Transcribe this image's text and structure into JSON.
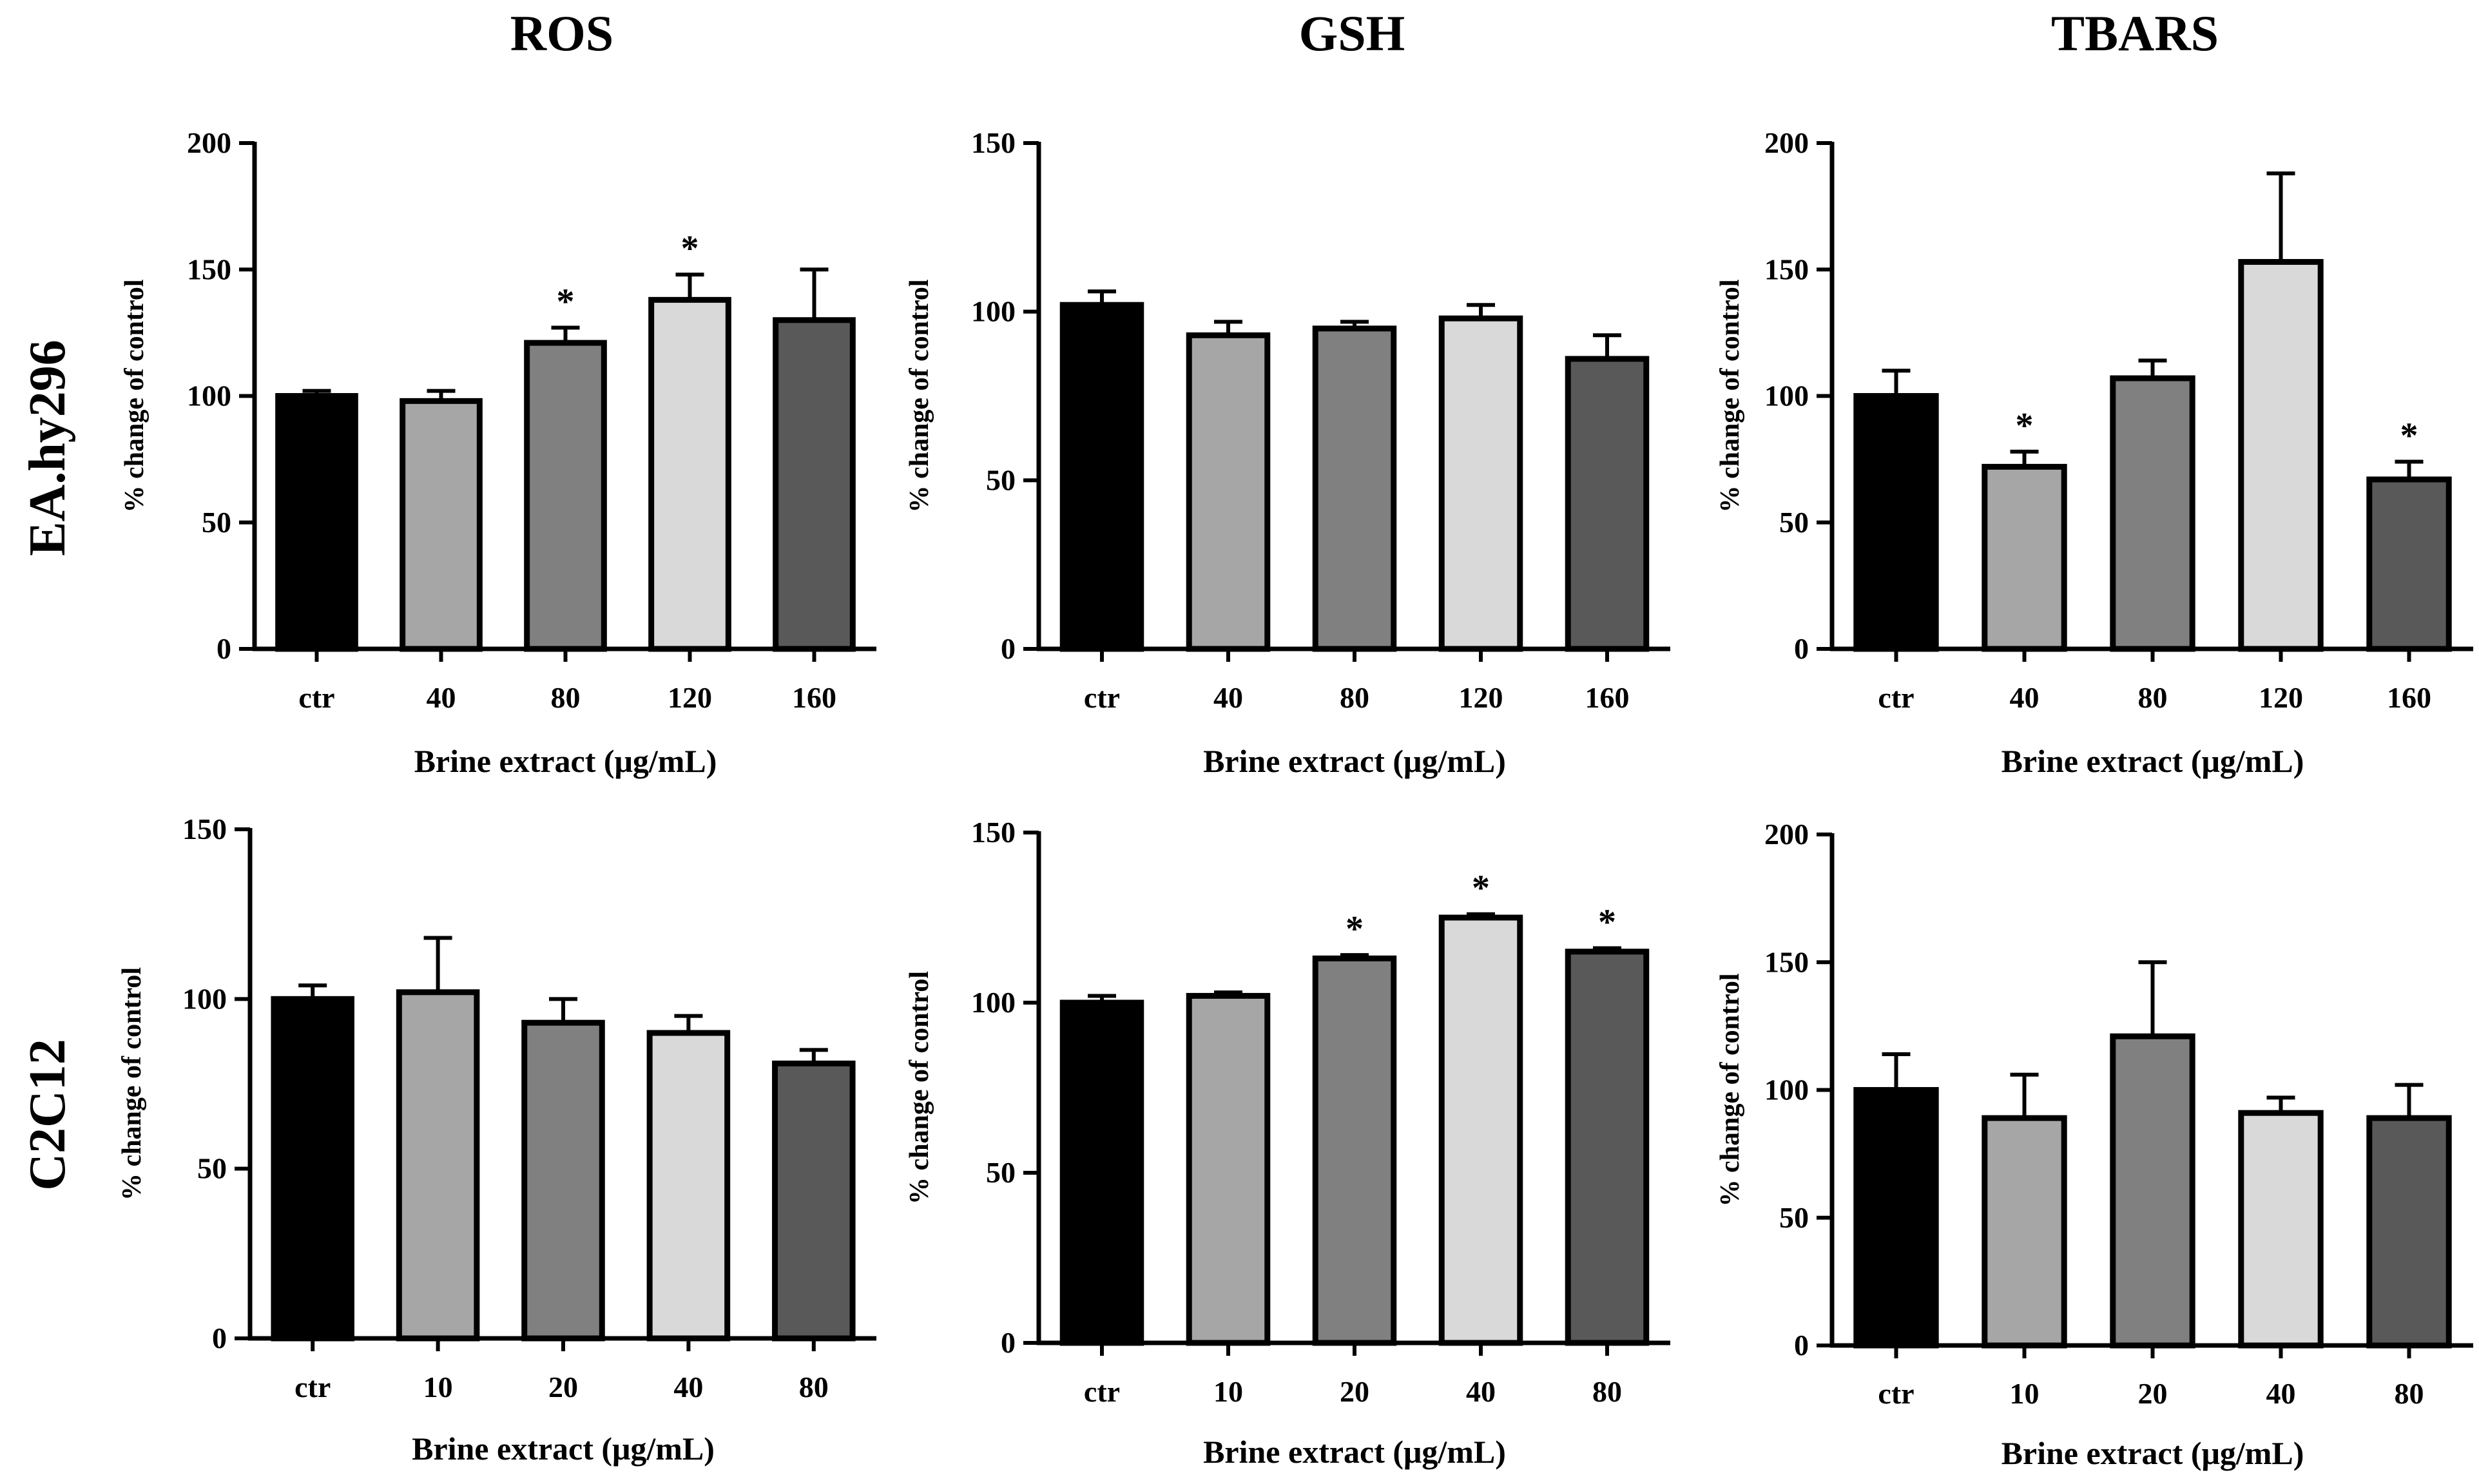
{
  "column_titles": [
    "ROS",
    "GSH",
    "TBARS"
  ],
  "row_labels": [
    "EA.hy296",
    "C2C12"
  ],
  "chart_data": [
    {
      "type": "bar",
      "title": "ROS",
      "cell_line": "EA.hy296",
      "categories": [
        "ctr",
        "40",
        "80",
        "120",
        "160"
      ],
      "values": [
        100,
        98,
        121,
        138,
        130
      ],
      "errors": [
        2,
        4,
        6,
        10,
        20
      ],
      "significant": [
        false,
        false,
        true,
        true,
        false
      ],
      "ylim": [
        0,
        200
      ],
      "yticks": [
        0,
        50,
        100,
        150,
        200
      ],
      "xlabel": "Brine extract (μg/mL)",
      "ylabel": "% change of control"
    },
    {
      "type": "bar",
      "title": "GSH",
      "cell_line": "EA.hy296",
      "categories": [
        "ctr",
        "40",
        "80",
        "120",
        "160"
      ],
      "values": [
        102,
        93,
        95,
        98,
        86
      ],
      "errors": [
        4,
        4,
        2,
        4,
        7
      ],
      "significant": [
        false,
        false,
        false,
        false,
        false
      ],
      "ylim": [
        0,
        150
      ],
      "yticks": [
        0,
        50,
        100,
        150
      ],
      "xlabel": "Brine extract (μg/mL)",
      "ylabel": "% change of control"
    },
    {
      "type": "bar",
      "title": "TBARS",
      "cell_line": "EA.hy296",
      "categories": [
        "ctr",
        "40",
        "80",
        "120",
        "160"
      ],
      "values": [
        100,
        72,
        107,
        153,
        67
      ],
      "errors": [
        10,
        6,
        7,
        35,
        7
      ],
      "significant": [
        false,
        true,
        false,
        false,
        true
      ],
      "ylim": [
        0,
        200
      ],
      "yticks": [
        0,
        50,
        100,
        150,
        200
      ],
      "xlabel": "Brine extract (μg/mL)",
      "ylabel": "% change of control"
    },
    {
      "type": "bar",
      "title": "ROS",
      "cell_line": "C2C12",
      "categories": [
        "ctr",
        "10",
        "20",
        "40",
        "80"
      ],
      "values": [
        100,
        102,
        93,
        90,
        81
      ],
      "errors": [
        4,
        16,
        7,
        5,
        4
      ],
      "significant": [
        false,
        false,
        false,
        false,
        false
      ],
      "ylim": [
        0,
        150
      ],
      "yticks": [
        0,
        50,
        100,
        150
      ],
      "xlabel": "Brine extract (μg/mL)",
      "ylabel": "% change of control"
    },
    {
      "type": "bar",
      "title": "GSH",
      "cell_line": "C2C12",
      "categories": [
        "ctr",
        "10",
        "20",
        "40",
        "80"
      ],
      "values": [
        100,
        102,
        113,
        125,
        115
      ],
      "errors": [
        2,
        1,
        1,
        1,
        1
      ],
      "significant": [
        false,
        false,
        true,
        true,
        true
      ],
      "ylim": [
        0,
        150
      ],
      "yticks": [
        0,
        50,
        100,
        150
      ],
      "xlabel": "Brine extract (μg/mL)",
      "ylabel": "% change of control"
    },
    {
      "type": "bar",
      "title": "TBARS",
      "cell_line": "C2C12",
      "categories": [
        "ctr",
        "10",
        "20",
        "40",
        "80"
      ],
      "values": [
        100,
        89,
        121,
        91,
        89
      ],
      "errors": [
        14,
        17,
        29,
        6,
        13
      ],
      "significant": [
        false,
        false,
        false,
        false,
        false
      ],
      "ylim": [
        0,
        200
      ],
      "yticks": [
        0,
        50,
        100,
        150,
        200
      ],
      "xlabel": "Brine extract (μg/mL)",
      "ylabel": "% change of control"
    }
  ],
  "significance_marker": "*",
  "bar_colors": [
    "#000000",
    "#a6a6a6",
    "#808080",
    "#d9d9d9",
    "#595959"
  ],
  "axis_color": "#000000"
}
